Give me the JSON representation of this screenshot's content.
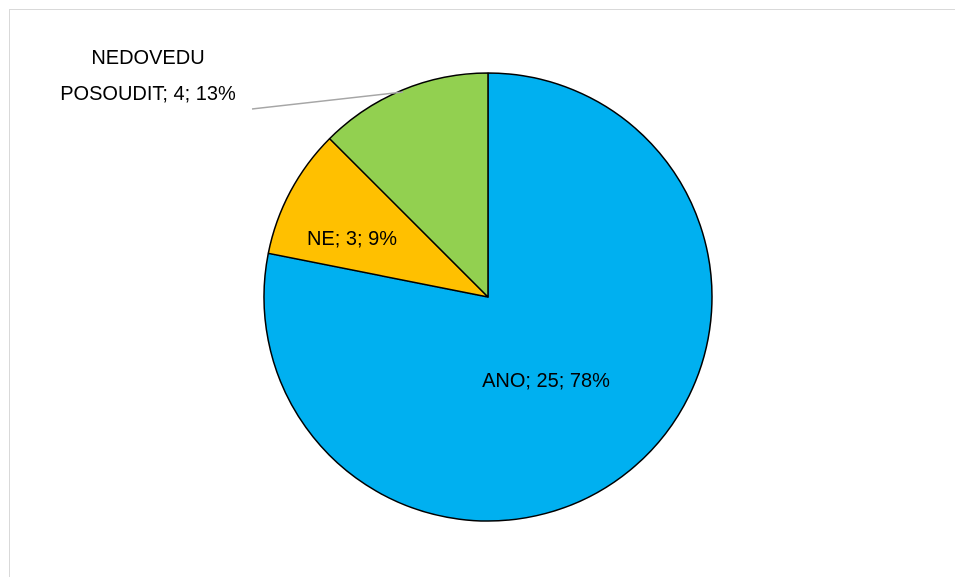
{
  "chart_data": {
    "type": "pie",
    "title": "",
    "legend": "none",
    "slices": [
      {
        "category": "ANO",
        "value": 25,
        "percent": 78,
        "label": "ANO; 25; 78%",
        "color": "#00B0F0"
      },
      {
        "category": "NE",
        "value": 3,
        "percent": 9,
        "label": "NE; 3; 9%",
        "color": "#FFC000"
      },
      {
        "category": "NEDOVEDU POSOUDIT",
        "value": 4,
        "percent": 13,
        "label_lines": [
          "NEDOVEDU",
          "POSOUDIT; 4; 13%"
        ],
        "color": "#92D050"
      }
    ]
  }
}
